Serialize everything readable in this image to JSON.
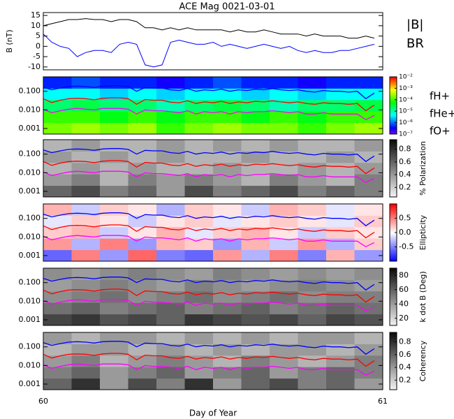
{
  "chart_data": [
    {
      "type": "line",
      "title": "ACE Mag 0021-03-01",
      "ylabel": "B (nT)",
      "x": [
        60,
        60.025,
        60.05,
        60.075,
        60.1,
        60.125,
        60.15,
        60.175,
        60.2,
        60.225,
        60.25,
        60.275,
        60.3,
        60.325,
        60.35,
        60.375,
        60.4,
        60.425,
        60.45,
        60.475,
        60.5,
        60.525,
        60.55,
        60.575,
        60.6,
        60.625,
        60.65,
        60.675,
        60.7,
        60.725,
        60.75,
        60.775,
        60.8,
        60.825,
        60.85,
        60.875,
        60.9,
        60.925,
        60.95,
        60.975
      ],
      "series": [
        {
          "name": "|B|",
          "color": "#000000",
          "values": [
            10,
            11,
            12,
            13,
            13,
            13.5,
            13,
            13,
            12,
            13,
            13,
            12,
            9,
            9,
            8,
            9,
            8,
            9,
            8,
            8,
            8,
            8,
            7,
            8,
            7,
            7,
            8,
            7,
            6,
            6,
            6,
            5,
            6,
            5,
            5,
            5,
            4,
            4,
            5,
            4
          ]
        },
        {
          "name": "BR",
          "color": "#0000ff",
          "values": [
            6,
            2,
            0,
            -1,
            -5,
            -3,
            -2,
            -2,
            -3,
            1,
            2,
            1,
            -9,
            -10,
            -9,
            2,
            3,
            2,
            1,
            1,
            2,
            0,
            1,
            0,
            -1,
            0,
            1,
            0,
            -1,
            0,
            -2,
            -3,
            -2,
            -3,
            -3,
            -2,
            -2,
            -1,
            0,
            1
          ]
        }
      ],
      "ylim": [
        -11.4,
        16.4
      ],
      "yticks": [
        -10,
        -5,
        0,
        5,
        10,
        15
      ]
    },
    {
      "type": "spectrogram",
      "colormap": "rainbow",
      "colorbar_log": true,
      "clim": [
        1e-07,
        0.01
      ],
      "cticks": [
        {
          "value": 0.01,
          "label": "10⁻²"
        },
        {
          "value": 0.001,
          "label": "10⁻³"
        },
        {
          "value": 0.0001,
          "label": "10⁻⁴"
        },
        {
          "value": 1e-05,
          "label": "10⁻⁵"
        },
        {
          "value": 1e-06,
          "label": "10⁻⁶"
        },
        {
          "value": 1e-07,
          "label": "10⁻⁷"
        }
      ],
      "ylim": [
        0.0005,
        0.6
      ],
      "yticks": [
        {
          "value": 0.001,
          "label": "0.001"
        },
        {
          "value": 0.01,
          "label": "0.010"
        },
        {
          "value": 0.1,
          "label": "0.100"
        }
      ],
      "z": [
        [
          0.0002,
          0.0003,
          0.0002,
          0.0003,
          0.0001,
          0.0002,
          0.0003,
          0.0002,
          0.0002,
          0.0001,
          0.0002,
          0.0003
        ],
        [
          0.0001,
          0.0001,
          5e-05,
          0.0001,
          5e-05,
          0.0001,
          0.0001,
          5e-05,
          0.0001,
          5e-05,
          0.0001,
          0.0001
        ],
        [
          2e-05,
          3e-05,
          2e-05,
          2e-05,
          1e-05,
          2e-05,
          3e-05,
          2e-05,
          1e-05,
          2e-05,
          2e-05,
          3e-05
        ],
        [
          5e-06,
          5e-06,
          3e-06,
          5e-06,
          3e-06,
          5e-06,
          5e-06,
          3e-06,
          5e-06,
          3e-06,
          5e-06,
          5e-06
        ],
        [
          5e-07,
          8e-07,
          5e-07,
          5e-07,
          3e-07,
          5e-07,
          8e-07,
          5e-07,
          5e-07,
          3e-07,
          5e-07,
          5e-07
        ]
      ],
      "series": [
        {
          "name": "fH+",
          "color": "#0000ff",
          "values": [
            0.17,
            0.12,
            0.15,
            0.18,
            0.19,
            0.18,
            0.16,
            0.19,
            0.2,
            0.2,
            0.18,
            0.1,
            0.16,
            0.15,
            0.15,
            0.12,
            0.11,
            0.14,
            0.1,
            0.12,
            0.11,
            0.13,
            0.1,
            0.12,
            0.11,
            0.13,
            0.12,
            0.14,
            0.12,
            0.11,
            0.12,
            0.1,
            0.09,
            0.11,
            0.1,
            0.1,
            0.09,
            0.1,
            0.04,
            0.08
          ]
        },
        {
          "name": "fHe+",
          "color": "#ff0000",
          "values": [
            0.04,
            0.025,
            0.033,
            0.04,
            0.042,
            0.04,
            0.035,
            0.042,
            0.045,
            0.045,
            0.04,
            0.02,
            0.036,
            0.033,
            0.033,
            0.026,
            0.024,
            0.031,
            0.022,
            0.027,
            0.024,
            0.029,
            0.022,
            0.027,
            0.024,
            0.029,
            0.027,
            0.031,
            0.027,
            0.024,
            0.027,
            0.022,
            0.02,
            0.024,
            0.022,
            0.022,
            0.02,
            0.022,
            0.009,
            0.018
          ]
        },
        {
          "name": "fO+",
          "color": "#ff00ff",
          "values": [
            0.011,
            0.007,
            0.009,
            0.011,
            0.012,
            0.011,
            0.01,
            0.012,
            0.012,
            0.012,
            0.011,
            0.006,
            0.01,
            0.009,
            0.009,
            0.008,
            0.007,
            0.009,
            0.006,
            0.008,
            0.007,
            0.008,
            0.006,
            0.008,
            0.007,
            0.008,
            0.008,
            0.009,
            0.008,
            0.007,
            0.008,
            0.006,
            0.006,
            0.007,
            0.006,
            0.006,
            0.006,
            0.006,
            0.003,
            0.005
          ]
        }
      ]
    },
    {
      "type": "spectrogram",
      "colormap": "gray",
      "colorbar_label": "% Polarization",
      "clim": [
        0.05,
        0.95
      ],
      "cticks": [
        0.2,
        0.4,
        0.6,
        0.8
      ],
      "ylim": [
        0.0005,
        0.6
      ],
      "yticks": [
        {
          "value": 0.001,
          "label": "0.001"
        },
        {
          "value": 0.01,
          "label": "0.010"
        },
        {
          "value": 0.1,
          "label": "0.100"
        }
      ],
      "z": [
        [
          0.6,
          0.7,
          0.5,
          0.6,
          0.4,
          0.7,
          0.5,
          0.6,
          0.7,
          0.5,
          0.6,
          0.5
        ],
        [
          0.4,
          0.5,
          0.3,
          0.5,
          0.4,
          0.5,
          0.4,
          0.3,
          0.5,
          0.4,
          0.3,
          0.5
        ],
        [
          0.3,
          0.4,
          0.3,
          0.4,
          0.3,
          0.3,
          0.4,
          0.3,
          0.3,
          0.4,
          0.3,
          0.4
        ],
        [
          0.4,
          0.3,
          0.4,
          0.3,
          0.4,
          0.3,
          0.3,
          0.4,
          0.3,
          0.3,
          0.4,
          0.3
        ],
        [
          0.3,
          0.4,
          0.3,
          0.3,
          0.4,
          0.3,
          0.4,
          0.3,
          0.4,
          0.3,
          0.3,
          0.4
        ]
      ]
    },
    {
      "type": "spectrogram",
      "colormap": "bwr",
      "colorbar_label": "Ellipticity",
      "clim": [
        -1,
        1
      ],
      "cticks": [
        -0.5,
        {
          "value": 0,
          "label": "0.0"
        },
        0.5
      ],
      "ylim": [
        0.0005,
        0.6
      ],
      "yticks": [
        {
          "value": 0.001,
          "label": "0.001"
        },
        {
          "value": 0.01,
          "label": "0.010"
        },
        {
          "value": 0.1,
          "label": "0.100"
        }
      ],
      "z": [
        [
          -0.6,
          0.5,
          -0.4,
          0.6,
          -0.5,
          -0.6,
          0.4,
          -0.3,
          0.5,
          -0.5,
          0.3,
          -0.4
        ],
        [
          0.4,
          -0.3,
          0.5,
          -0.4,
          0.3,
          0.2,
          -0.4,
          0.3,
          -0.2,
          0.4,
          -0.3,
          0.2
        ],
        [
          0.2,
          0.3,
          -0.2,
          0.1,
          0.3,
          -0.1,
          0.2,
          0.3,
          0.1,
          -0.2,
          0.2,
          0.1
        ],
        [
          -0.1,
          0.2,
          0.1,
          -0.2,
          0.1,
          0.2,
          -0.1,
          0.1,
          0.2,
          0.1,
          -0.1,
          0.2
        ],
        [
          0.3,
          -0.2,
          0.2,
          0.1,
          -0.3,
          0.2,
          0.1,
          -0.2,
          0.3,
          0.2,
          -0.1,
          0.1
        ]
      ]
    },
    {
      "type": "spectrogram",
      "colormap": "gray",
      "colorbar_label": "k dot B (Deg)",
      "clim": [
        10,
        90
      ],
      "cticks": [
        20,
        40,
        60,
        80
      ],
      "ylim": [
        0.0005,
        0.6
      ],
      "yticks": [
        {
          "value": 0.001,
          "label": "0.001"
        },
        {
          "value": 0.01,
          "label": "0.010"
        },
        {
          "value": 0.1,
          "label": "0.100"
        }
      ],
      "z": [
        [
          70,
          75,
          65,
          70,
          60,
          75,
          70,
          65,
          70,
          60,
          70,
          65
        ],
        [
          55,
          60,
          50,
          55,
          60,
          50,
          55,
          60,
          50,
          55,
          60,
          55
        ],
        [
          45,
          50,
          55,
          45,
          50,
          55,
          45,
          50,
          55,
          45,
          50,
          50
        ],
        [
          40,
          45,
          50,
          45,
          40,
          50,
          45,
          40,
          45,
          50,
          45,
          40
        ],
        [
          45,
          40,
          45,
          50,
          45,
          40,
          50,
          45,
          40,
          45,
          40,
          45
        ]
      ]
    },
    {
      "type": "spectrogram",
      "colormap": "gray",
      "colorbar_label": "Coherency",
      "clim": [
        0.05,
        0.95
      ],
      "cticks": [
        0.2,
        0.4,
        0.6,
        0.8
      ],
      "ylim": [
        0.0005,
        0.6
      ],
      "yticks": [
        {
          "value": 0.001,
          "label": "0.001"
        },
        {
          "value": 0.01,
          "label": "0.010"
        },
        {
          "value": 0.1,
          "label": "0.100"
        }
      ],
      "xlim": [
        60,
        61
      ],
      "xticks": [
        60,
        61
      ],
      "xlabel": "Day of Year",
      "z": [
        [
          0.6,
          0.8,
          0.4,
          0.7,
          0.5,
          0.8,
          0.4,
          0.6,
          0.7,
          0.5,
          0.6,
          0.4
        ],
        [
          0.5,
          0.6,
          0.4,
          0.5,
          0.6,
          0.4,
          0.5,
          0.6,
          0.4,
          0.5,
          0.6,
          0.5
        ],
        [
          0.4,
          0.5,
          0.3,
          0.4,
          0.5,
          0.4,
          0.3,
          0.5,
          0.4,
          0.3,
          0.4,
          0.5
        ],
        [
          0.3,
          0.4,
          0.4,
          0.3,
          0.4,
          0.3,
          0.4,
          0.3,
          0.4,
          0.4,
          0.3,
          0.4
        ],
        [
          0.4,
          0.3,
          0.4,
          0.4,
          0.3,
          0.4,
          0.3,
          0.4,
          0.3,
          0.4,
          0.4,
          0.3
        ]
      ]
    }
  ]
}
